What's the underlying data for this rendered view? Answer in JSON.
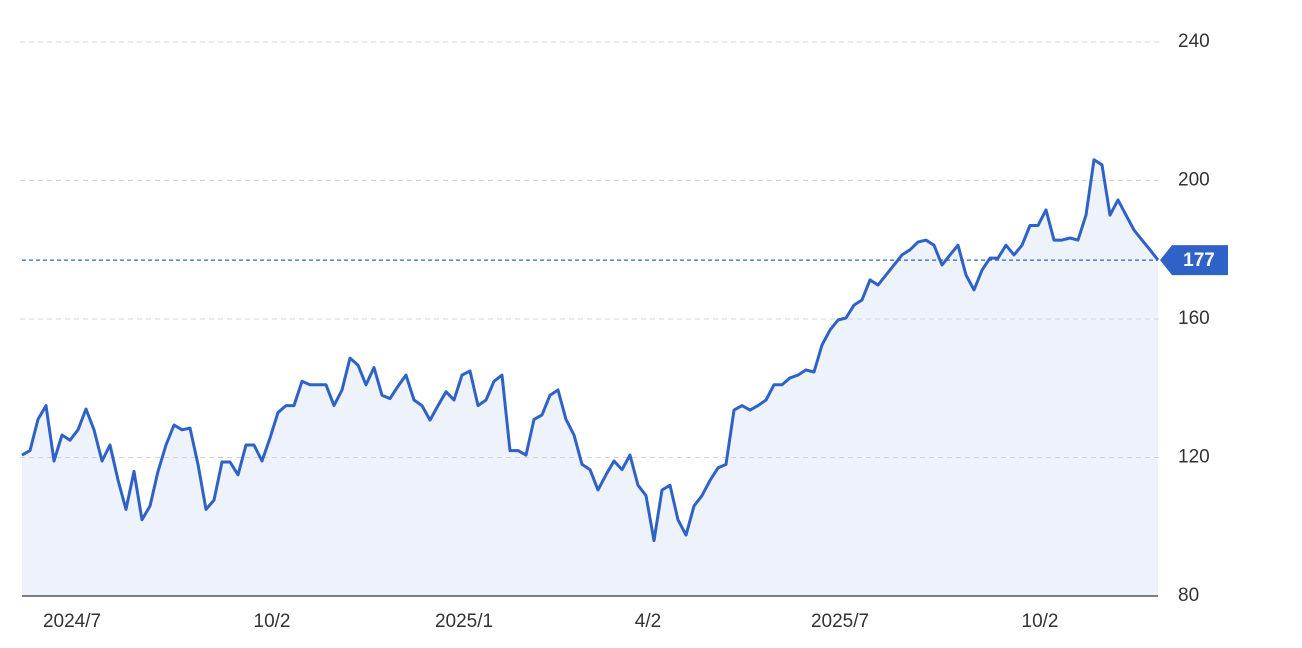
{
  "chart_data": {
    "type": "line",
    "categories": [
      null,
      null,
      null,
      null,
      null,
      null,
      "2024/7",
      null,
      null,
      null,
      null,
      null,
      null,
      null,
      null,
      null,
      null,
      null,
      null,
      null,
      null,
      null,
      null,
      null,
      null,
      null,
      null,
      null,
      null,
      null,
      null,
      "10/2",
      null,
      null,
      null,
      null,
      null,
      null,
      null,
      null,
      null,
      null,
      null,
      null,
      null,
      null,
      null,
      null,
      null,
      null,
      null,
      null,
      null,
      null,
      null,
      "2025/1",
      null,
      null,
      null,
      null,
      null,
      null,
      null,
      null,
      null,
      null,
      null,
      null,
      null,
      null,
      null,
      null,
      null,
      null,
      null,
      null,
      null,
      null,
      "4/2",
      null,
      null,
      null,
      null,
      null,
      null,
      null,
      null,
      null,
      null,
      null,
      null,
      null,
      null,
      null,
      null,
      null,
      null,
      null,
      null,
      null,
      null,
      null,
      "2025/7",
      null,
      null,
      null,
      null,
      null,
      null,
      null,
      null,
      null,
      null,
      null,
      null,
      null,
      null,
      null,
      null,
      null,
      null,
      null,
      null,
      null,
      null,
      null,
      null,
      "10/2",
      null,
      null,
      null,
      null,
      null,
      null,
      null,
      null,
      null,
      null,
      null,
      null,
      null,
      null,
      null
    ],
    "series": [
      {
        "color": "#2f62c6",
        "values": [
          120.7,
          122,
          131,
          135,
          119,
          126.5,
          125,
          128,
          134,
          128,
          119,
          123.6,
          113.5,
          105,
          116,
          102,
          106,
          116,
          123.6,
          129.4,
          128,
          128.5,
          118,
          105,
          107.7,
          118.7,
          118.7,
          115,
          123.6,
          123.6,
          119,
          125.6,
          133,
          135,
          135,
          142,
          141,
          141,
          141,
          135,
          139.5,
          148.7,
          146.7,
          141,
          146,
          138,
          137,
          140.6,
          143.8,
          136.6,
          135,
          130.8,
          135,
          139,
          136.6,
          143.8,
          145,
          135,
          136.6,
          142,
          143.8,
          122,
          122,
          120.7,
          131,
          132.3,
          138,
          139.5,
          131,
          126.5,
          118,
          116.5,
          110.6,
          115,
          119,
          116.5,
          120.7,
          112,
          109,
          96,
          110.6,
          112,
          102,
          97.6,
          106,
          109,
          113.4,
          117,
          118,
          133.7,
          135,
          133.7,
          135,
          136.6,
          141,
          141,
          143,
          143.8,
          145.3,
          144.7,
          152.5,
          156.8,
          159.7,
          160.3,
          164,
          165.5,
          171.3,
          169.8,
          172.7,
          175.6,
          178.5,
          180,
          182.2,
          182.8,
          181.3,
          175.6,
          178.5,
          181.3,
          172.7,
          168.4,
          174.1,
          177.6,
          177.6,
          181.3,
          178.5,
          181.3,
          187,
          187,
          191.5,
          182.8,
          182.8,
          183.4,
          182.8,
          190,
          206,
          204.5,
          190,
          194.4,
          190,
          185.7,
          182.8,
          180,
          177
        ]
      }
    ],
    "ylim": [
      80,
      240
    ],
    "yticks": [
      80,
      120,
      160,
      200,
      240
    ],
    "grid": true,
    "area_fill": "#edf2fb"
  }
}
